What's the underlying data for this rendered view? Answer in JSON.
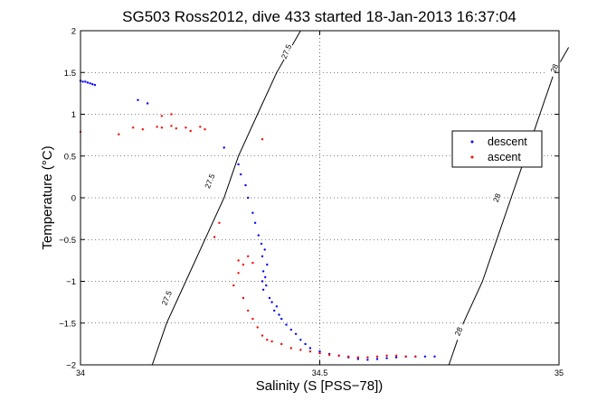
{
  "chart_data": {
    "type": "scatter",
    "title": "SG503 Ross2012, dive 433 started 18-Jan-2013 16:37:04",
    "xlabel": "Salinity (S [PSS−78])",
    "ylabel": "Temperature (°C)",
    "xlim": [
      34,
      35
    ],
    "ylim": [
      -2,
      2
    ],
    "x_ticks": [
      34,
      34.5,
      35
    ],
    "x_tick_labels": [
      "34",
      "34.5",
      "35"
    ],
    "y_ticks": [
      -2,
      -1.5,
      -1,
      -0.5,
      0,
      0.5,
      1,
      1.5,
      2
    ],
    "y_tick_labels": [
      "−2",
      "−1.5",
      "−1",
      "−0.5",
      "0",
      "0.5",
      "1",
      "1.5",
      "2"
    ],
    "grid": true,
    "grid_style": "dotted",
    "legend_position": "right",
    "legend": [
      {
        "label": "descent",
        "color": "#0000ff",
        "marker": "."
      },
      {
        "label": "ascent",
        "color": "#ff0000",
        "marker": "."
      }
    ],
    "contours": [
      {
        "label": "27.5",
        "points": [
          [
            34.15,
            -2.0
          ],
          [
            34.18,
            -1.5
          ],
          [
            34.22,
            -1.0
          ],
          [
            34.26,
            -0.5
          ],
          [
            34.3,
            0.0
          ],
          [
            34.33,
            0.5
          ],
          [
            34.37,
            1.0
          ],
          [
            34.41,
            1.5
          ],
          [
            34.46,
            2.0
          ]
        ],
        "label_positions": [
          [
            34.43,
            1.75
          ],
          [
            34.27,
            0.2
          ],
          [
            34.18,
            -1.2
          ]
        ]
      },
      {
        "label": "28",
        "points": [
          [
            34.77,
            -2.0
          ],
          [
            34.8,
            -1.5
          ],
          [
            34.84,
            -1.0
          ],
          [
            34.87,
            -0.5
          ],
          [
            34.9,
            0.0
          ],
          [
            34.93,
            0.5
          ],
          [
            34.96,
            1.0
          ],
          [
            34.99,
            1.5
          ],
          [
            35.02,
            1.8
          ]
        ],
        "label_positions": [
          [
            34.99,
            1.55
          ],
          [
            34.87,
            0.0
          ],
          [
            34.79,
            -1.6
          ]
        ]
      }
    ],
    "series": [
      {
        "name": "descent",
        "color": "#0000ff",
        "points": [
          [
            34.0,
            1.4
          ],
          [
            34.005,
            1.39
          ],
          [
            34.01,
            1.39
          ],
          [
            34.015,
            1.38
          ],
          [
            34.02,
            1.37
          ],
          [
            34.025,
            1.36
          ],
          [
            34.03,
            1.35
          ],
          [
            34.12,
            1.17
          ],
          [
            34.14,
            1.13
          ],
          [
            34.3,
            0.6
          ],
          [
            34.33,
            0.4
          ],
          [
            34.335,
            0.28
          ],
          [
            34.345,
            0.15
          ],
          [
            34.35,
            0.0
          ],
          [
            34.36,
            -0.18
          ],
          [
            34.365,
            -0.3
          ],
          [
            34.372,
            -0.45
          ],
          [
            34.378,
            -0.55
          ],
          [
            34.385,
            -0.62
          ],
          [
            34.38,
            -0.7
          ],
          [
            34.39,
            -0.8
          ],
          [
            34.382,
            -0.88
          ],
          [
            34.386,
            -0.95
          ],
          [
            34.38,
            -1.0
          ],
          [
            34.388,
            -1.05
          ],
          [
            34.382,
            -1.1
          ],
          [
            34.395,
            -1.2
          ],
          [
            34.4,
            -1.25
          ],
          [
            34.41,
            -1.3
          ],
          [
            34.405,
            -1.35
          ],
          [
            34.415,
            -1.4
          ],
          [
            34.42,
            -1.45
          ],
          [
            34.43,
            -1.52
          ],
          [
            34.44,
            -1.58
          ],
          [
            34.45,
            -1.63
          ],
          [
            34.46,
            -1.7
          ],
          [
            34.47,
            -1.75
          ],
          [
            34.48,
            -1.8
          ],
          [
            34.5,
            -1.84
          ],
          [
            34.52,
            -1.87
          ],
          [
            34.54,
            -1.89
          ],
          [
            34.56,
            -1.91
          ],
          [
            34.58,
            -1.93
          ],
          [
            34.6,
            -1.94
          ],
          [
            34.62,
            -1.93
          ],
          [
            34.64,
            -1.92
          ],
          [
            34.66,
            -1.91
          ],
          [
            34.68,
            -1.9
          ],
          [
            34.7,
            -1.9
          ],
          [
            34.72,
            -1.9
          ],
          [
            34.74,
            -1.9
          ]
        ]
      },
      {
        "name": "ascent",
        "color": "#ff0000",
        "points": [
          [
            34.0,
            0.79
          ],
          [
            34.08,
            0.76
          ],
          [
            34.11,
            0.84
          ],
          [
            34.13,
            0.82
          ],
          [
            34.16,
            0.85
          ],
          [
            34.17,
            0.84
          ],
          [
            34.19,
            0.86
          ],
          [
            34.2,
            0.83
          ],
          [
            34.22,
            0.84
          ],
          [
            34.23,
            0.8
          ],
          [
            34.25,
            0.85
          ],
          [
            34.26,
            0.82
          ],
          [
            34.17,
            0.98
          ],
          [
            34.19,
            1.0
          ],
          [
            34.38,
            0.7
          ],
          [
            34.29,
            -0.3
          ],
          [
            34.28,
            -0.47
          ],
          [
            34.33,
            -0.75
          ],
          [
            34.34,
            -0.8
          ],
          [
            34.35,
            -0.7
          ],
          [
            34.36,
            -0.78
          ],
          [
            34.33,
            -0.9
          ],
          [
            34.32,
            -1.05
          ],
          [
            34.34,
            -1.2
          ],
          [
            34.35,
            -1.35
          ],
          [
            34.36,
            -1.45
          ],
          [
            34.37,
            -1.55
          ],
          [
            34.38,
            -1.65
          ],
          [
            34.39,
            -1.7
          ],
          [
            34.4,
            -1.72
          ],
          [
            34.42,
            -1.75
          ],
          [
            34.44,
            -1.8
          ],
          [
            34.46,
            -1.82
          ],
          [
            34.48,
            -1.84
          ],
          [
            34.5,
            -1.86
          ],
          [
            34.52,
            -1.88
          ],
          [
            34.54,
            -1.89
          ],
          [
            34.56,
            -1.9
          ],
          [
            34.58,
            -1.91
          ],
          [
            34.6,
            -1.91
          ],
          [
            34.62,
            -1.9
          ],
          [
            34.64,
            -1.89
          ],
          [
            34.66,
            -1.89
          ],
          [
            34.68,
            -1.9
          ],
          [
            34.7,
            -1.9
          ]
        ]
      }
    ]
  }
}
